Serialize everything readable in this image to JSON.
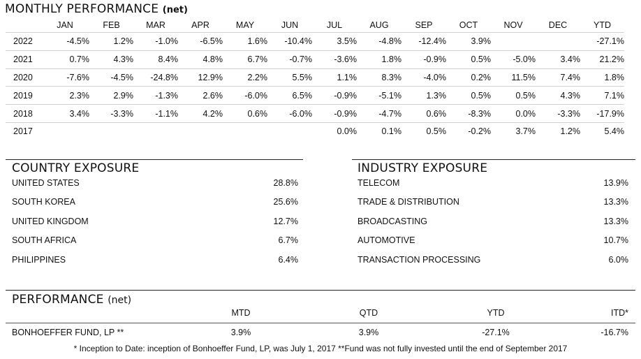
{
  "monthly": {
    "title": "MONTHLY PERFORMANCE",
    "title_suffix": "(net)",
    "headers": [
      "",
      "JAN",
      "FEB",
      "MAR",
      "APR",
      "MAY",
      "JUN",
      "JUL",
      "AUG",
      "SEP",
      "OCT",
      "NOV",
      "DEC",
      "YTD"
    ],
    "rows": [
      [
        "2022",
        "-4.5%",
        "1.2%",
        "-1.0%",
        "-6.5%",
        "1.6%",
        "-10.4%",
        "3.5%",
        "-4.8%",
        "-12.4%",
        "3.9%",
        "",
        "",
        "-27.1%"
      ],
      [
        "2021",
        "0.7%",
        "4.3%",
        "8.4%",
        "4.8%",
        "6.7%",
        "-0.7%",
        "-3.6%",
        "1.8%",
        "-0.9%",
        "0.5%",
        "-5.0%",
        "3.4%",
        "21.2%"
      ],
      [
        "2020",
        "-7.6%",
        "-4.5%",
        "-24.8%",
        "12.9%",
        "2.2%",
        "5.5%",
        "1.1%",
        "8.3%",
        "-4.0%",
        "0.2%",
        "11.5%",
        "7.4%",
        "1.8%"
      ],
      [
        "2019",
        "2.3%",
        "2.9%",
        "-1.3%",
        "2.6%",
        "-6.0%",
        "6.5%",
        "-0.9%",
        "-5.1%",
        "1.3%",
        "0.5%",
        "0.5%",
        "4.3%",
        "7.1%"
      ],
      [
        "2018",
        "3.4%",
        "-3.3%",
        "-1.1%",
        "4.2%",
        "0.6%",
        "-6.0%",
        "-0.9%",
        "-4.7%",
        "0.6%",
        "-8.3%",
        "0.0%",
        "-3.3%",
        "-17.9%"
      ],
      [
        "2017",
        "",
        "",
        "",
        "",
        "",
        "",
        "0.0%",
        "0.1%",
        "0.5%",
        "-0.2%",
        "3.7%",
        "1.2%",
        "5.4%"
      ]
    ]
  },
  "country": {
    "title": "COUNTRY EXPOSURE",
    "items": [
      {
        "name": "UNITED STATES",
        "value": "28.8%"
      },
      {
        "name": "SOUTH KOREA",
        "value": "25.6%"
      },
      {
        "name": "UNITED KINGDOM",
        "value": "12.7%"
      },
      {
        "name": "SOUTH AFRICA",
        "value": "6.7%"
      },
      {
        "name": "PHILIPPINES",
        "value": "6.4%"
      }
    ]
  },
  "industry": {
    "title": "INDUSTRY EXPOSURE",
    "items": [
      {
        "name": "TELECOM",
        "value": "13.9%"
      },
      {
        "name": "TRADE & DISTRIBUTION",
        "value": "13.3%"
      },
      {
        "name": "BROADCASTING",
        "value": "13.3%"
      },
      {
        "name": "AUTOMOTIVE",
        "value": "10.7%"
      },
      {
        "name": "TRANSACTION PROCESSING",
        "value": "6.0%"
      }
    ]
  },
  "performance": {
    "title": "PERFORMANCE",
    "title_suffix": "(net)",
    "columns": [
      "MTD",
      "QTD",
      "YTD",
      "ITD*"
    ],
    "fund_name": "BONHOEFFER FUND, LP **",
    "values": [
      "3.9%",
      "3.9%",
      "-27.1%",
      "-16.7%"
    ],
    "footnote": "* Inception to Date: inception of Bonhoeffer Fund, LP, was July 1, 2017  **Fund was not fully invested until the end of September 2017"
  }
}
